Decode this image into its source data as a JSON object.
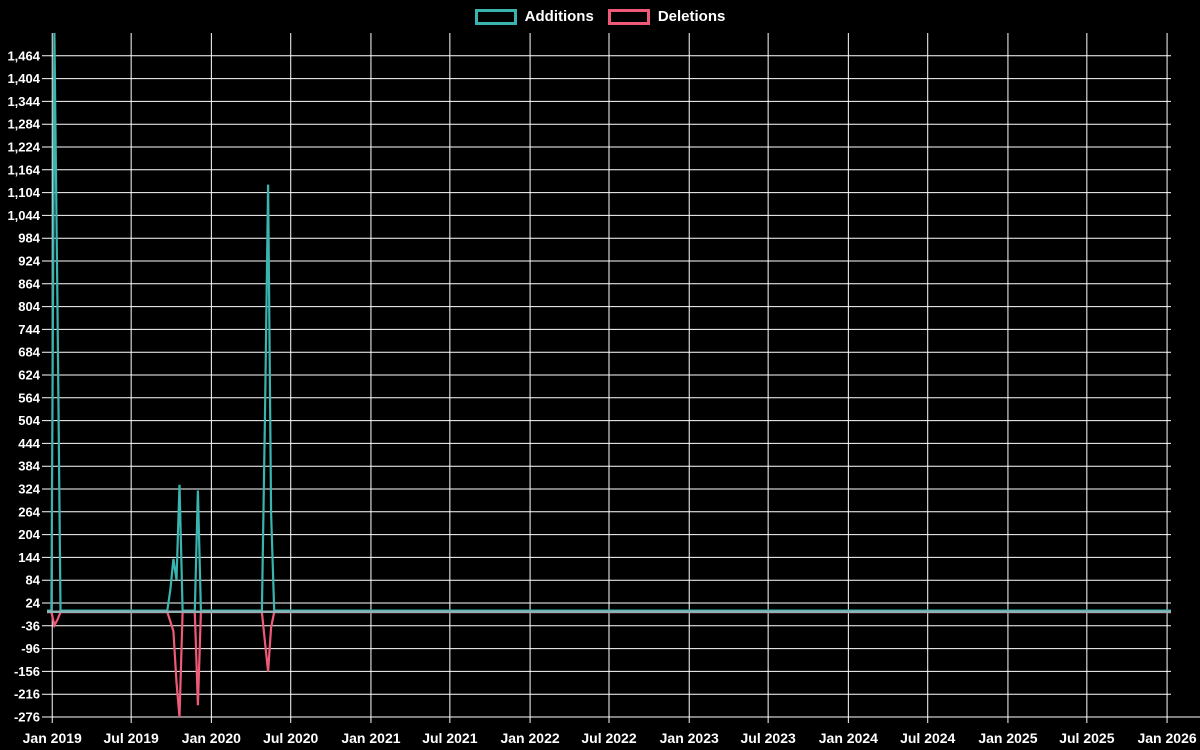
{
  "legend": {
    "additions_label": "Additions",
    "deletions_label": "Deletions"
  },
  "chart_data": {
    "type": "line",
    "title": "",
    "background_color": "#000000",
    "grid_color": "#ffffff",
    "text_color": "#ffffff",
    "legend_position": "top-center",
    "grid": true,
    "domain": {
      "start": "2018-12-20",
      "end": "2026-01-10"
    },
    "y_axis": {
      "min": -276,
      "max": 1524,
      "step": 60,
      "label_min": -276,
      "label_max": 1464
    },
    "x_ticks": [
      {
        "label": "Jan 2019",
        "date": "2019-01-01"
      },
      {
        "label": "Jul 2019",
        "date": "2019-07-01"
      },
      {
        "label": "Jan 2020",
        "date": "2020-01-01"
      },
      {
        "label": "Jul 2020",
        "date": "2020-07-01"
      },
      {
        "label": "Jan 2021",
        "date": "2021-01-01"
      },
      {
        "label": "Jul 2021",
        "date": "2021-07-01"
      },
      {
        "label": "Jan 2022",
        "date": "2022-01-01"
      },
      {
        "label": "Jul 2022",
        "date": "2022-07-01"
      },
      {
        "label": "Jan 2023",
        "date": "2023-01-01"
      },
      {
        "label": "Jul 2023",
        "date": "2023-07-01"
      },
      {
        "label": "Jan 2024",
        "date": "2024-01-01"
      },
      {
        "label": "Jul 2024",
        "date": "2024-07-01"
      },
      {
        "label": "Jan 2025",
        "date": "2025-01-01"
      },
      {
        "label": "Jul 2025",
        "date": "2025-07-01"
      },
      {
        "label": "Jan 2026",
        "date": "2026-01-01"
      }
    ],
    "series": [
      {
        "name": "Additions",
        "color": "#3AB4AE",
        "points": [
          [
            "2018-12-20",
            4
          ],
          [
            "2018-12-30",
            4
          ],
          [
            "2019-01-06",
            1524
          ],
          [
            "2019-01-13",
            800
          ],
          [
            "2019-01-20",
            4
          ],
          [
            "2019-09-22",
            4
          ],
          [
            "2019-09-29",
            60
          ],
          [
            "2019-10-06",
            140
          ],
          [
            "2019-10-13",
            85
          ],
          [
            "2019-10-20",
            335
          ],
          [
            "2019-10-27",
            4
          ],
          [
            "2019-11-24",
            4
          ],
          [
            "2019-12-01",
            320
          ],
          [
            "2019-12-08",
            4
          ],
          [
            "2020-04-26",
            4
          ],
          [
            "2020-05-03",
            520
          ],
          [
            "2020-05-10",
            1125
          ],
          [
            "2020-05-17",
            260
          ],
          [
            "2020-05-24",
            4
          ],
          [
            "2026-01-10",
            4
          ]
        ]
      },
      {
        "name": "Deletions",
        "color": "#EE5A78",
        "points": [
          [
            "2018-12-20",
            0
          ],
          [
            "2018-12-30",
            0
          ],
          [
            "2019-01-06",
            -35
          ],
          [
            "2019-01-13",
            -20
          ],
          [
            "2019-01-20",
            0
          ],
          [
            "2019-09-22",
            0
          ],
          [
            "2019-09-29",
            -25
          ],
          [
            "2019-10-06",
            -50
          ],
          [
            "2019-10-13",
            -185
          ],
          [
            "2019-10-20",
            -276
          ],
          [
            "2019-10-27",
            0
          ],
          [
            "2019-11-24",
            0
          ],
          [
            "2019-12-01",
            -245
          ],
          [
            "2019-12-08",
            0
          ],
          [
            "2020-04-26",
            0
          ],
          [
            "2020-05-03",
            -80
          ],
          [
            "2020-05-10",
            -156
          ],
          [
            "2020-05-17",
            -40
          ],
          [
            "2020-05-24",
            0
          ],
          [
            "2026-01-10",
            0
          ]
        ]
      }
    ],
    "zero_line": {
      "value": 1,
      "color": "#8FB3B5"
    }
  }
}
